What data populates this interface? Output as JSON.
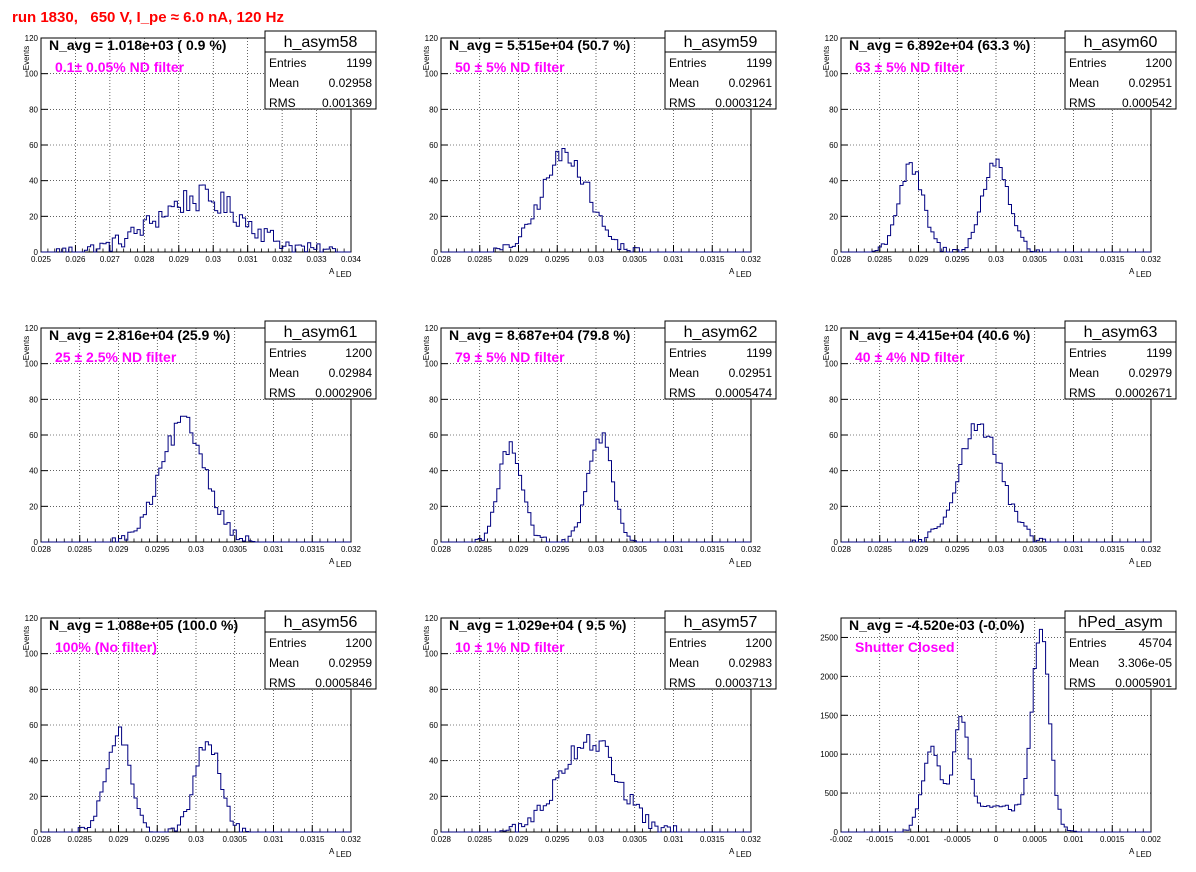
{
  "header": {
    "run_title": "run 1830,   650 V, I_pe ≈ 6.0 nA, 120 Hz"
  },
  "colors": {
    "histogram": "#000080",
    "title": "#ff0000",
    "filter_text": "#ff00ff"
  },
  "chart_data": [
    {
      "type": "histogram",
      "title": "h_asym58",
      "n_avg": "N_avg = 1.018e+03 ( 0.9 %)",
      "filter": "0.1± 0.05% ND filter",
      "stats": {
        "entries_label": "Entries",
        "entries": "1199",
        "mean_label": "Mean",
        "mean": "0.02958",
        "rms_label": "RMS",
        "rms": "0.001369"
      },
      "xlabel": "A",
      "xlabel_sub": "LED",
      "ylabel": "Events",
      "xlim": [
        0.025,
        0.034
      ],
      "ylim": [
        0,
        120
      ],
      "xticks": [
        "0.025",
        "0.026",
        "0.027",
        "0.028",
        "0.029",
        "0.03",
        "0.031",
        "0.032",
        "0.033",
        "0.034"
      ],
      "yticks": [
        "0",
        "20",
        "40",
        "60",
        "80",
        "100",
        "120"
      ],
      "components": [
        {
          "mu": 0.0296,
          "sigma": 0.0013,
          "peak": 30,
          "noise": 7
        }
      ]
    },
    {
      "type": "histogram",
      "title": "h_asym59",
      "n_avg": "N_avg = 5.515e+04 (50.7 %)",
      "filter": "50 ± 5% ND filter",
      "stats": {
        "entries_label": "Entries",
        "entries": "1199",
        "mean_label": "Mean",
        "mean": "0.02961",
        "rms_label": "RMS",
        "rms": "0.0003124"
      },
      "xlabel": "A",
      "xlabel_sub": "LED",
      "ylabel": "Events",
      "xlim": [
        0.028,
        0.032
      ],
      "ylim": [
        0,
        120
      ],
      "xticks": [
        "0.028",
        "0.0285",
        "0.029",
        "0.0295",
        "0.03",
        "0.0305",
        "0.031",
        "0.0315",
        "0.032"
      ],
      "yticks": [
        "0",
        "20",
        "40",
        "60",
        "80",
        "100",
        "120"
      ],
      "components": [
        {
          "mu": 0.02961,
          "sigma": 0.0003,
          "peak": 55,
          "noise": 5
        }
      ]
    },
    {
      "type": "histogram",
      "title": "h_asym60",
      "n_avg": "N_avg = 6.892e+04 (63.3 %)",
      "filter": "63 ± 5% ND filter",
      "stats": {
        "entries_label": "Entries",
        "entries": "1200",
        "mean_label": "Mean",
        "mean": "0.02951",
        "rms_label": "RMS",
        "rms": "0.000542"
      },
      "xlabel": "A",
      "xlabel_sub": "LED",
      "ylabel": "Events",
      "xlim": [
        0.028,
        0.032
      ],
      "ylim": [
        0,
        120
      ],
      "xticks": [
        "0.028",
        "0.0285",
        "0.029",
        "0.0295",
        "0.03",
        "0.0305",
        "0.031",
        "0.0315",
        "0.032"
      ],
      "yticks": [
        "0",
        "20",
        "40",
        "60",
        "80",
        "100",
        "120"
      ],
      "components": [
        {
          "mu": 0.0289,
          "sigma": 0.00016,
          "peak": 47,
          "noise": 4
        },
        {
          "mu": 0.03,
          "sigma": 0.00017,
          "peak": 51,
          "noise": 4
        }
      ]
    },
    {
      "type": "histogram",
      "title": "h_asym61",
      "n_avg": "N_avg = 2.816e+04 (25.9 %)",
      "filter": "25 ± 2.5% ND filter",
      "stats": {
        "entries_label": "Entries",
        "entries": "1200",
        "mean_label": "Mean",
        "mean": "0.02984",
        "rms_label": "RMS",
        "rms": "0.0002906"
      },
      "xlabel": "A",
      "xlabel_sub": "LED",
      "ylabel": "Events",
      "xlim": [
        0.028,
        0.032
      ],
      "ylim": [
        0,
        120
      ],
      "xticks": [
        "0.028",
        "0.0285",
        "0.029",
        "0.0295",
        "0.03",
        "0.0305",
        "0.031",
        "0.0315",
        "0.032"
      ],
      "yticks": [
        "0",
        "20",
        "40",
        "60",
        "80",
        "100",
        "120"
      ],
      "components": [
        {
          "mu": 0.02984,
          "sigma": 0.00029,
          "peak": 66,
          "noise": 5
        }
      ]
    },
    {
      "type": "histogram",
      "title": "h_asym62",
      "n_avg": "N_avg = 8.687e+04 (79.8 %)",
      "filter": "79 ± 5% ND filter",
      "stats": {
        "entries_label": "Entries",
        "entries": "1199",
        "mean_label": "Mean",
        "mean": "0.02951",
        "rms_label": "RMS",
        "rms": "0.0005474"
      },
      "xlabel": "A",
      "xlabel_sub": "LED",
      "ylabel": "Events",
      "xlim": [
        0.028,
        0.032
      ],
      "ylim": [
        0,
        120
      ],
      "xticks": [
        "0.028",
        "0.0285",
        "0.029",
        "0.0295",
        "0.03",
        "0.0305",
        "0.031",
        "0.0315",
        "0.032"
      ],
      "yticks": [
        "0",
        "20",
        "40",
        "60",
        "80",
        "100",
        "120"
      ],
      "components": [
        {
          "mu": 0.0289,
          "sigma": 0.00015,
          "peak": 55,
          "noise": 4
        },
        {
          "mu": 0.03005,
          "sigma": 0.00015,
          "peak": 60,
          "noise": 5
        }
      ]
    },
    {
      "type": "histogram",
      "title": "h_asym63",
      "n_avg": "N_avg = 4.415e+04 (40.6 %)",
      "filter": "40 ± 4% ND filter",
      "stats": {
        "entries_label": "Entries",
        "entries": "1199",
        "mean_label": "Mean",
        "mean": "0.02979",
        "rms_label": "RMS",
        "rms": "0.0002671"
      },
      "xlabel": "A",
      "xlabel_sub": "LED",
      "ylabel": "Events",
      "xlim": [
        0.028,
        0.032
      ],
      "ylim": [
        0,
        120
      ],
      "xticks": [
        "0.028",
        "0.0285",
        "0.029",
        "0.0295",
        "0.03",
        "0.0305",
        "0.031",
        "0.0315",
        "0.032"
      ],
      "yticks": [
        "0",
        "20",
        "40",
        "60",
        "80",
        "100",
        "120"
      ],
      "components": [
        {
          "mu": 0.02979,
          "sigma": 0.00027,
          "peak": 66,
          "noise": 5
        }
      ]
    },
    {
      "type": "histogram",
      "title": "h_asym56",
      "n_avg": "N_avg = 1.088e+05 (100.0 %)",
      "filter": "100% (No filter)",
      "stats": {
        "entries_label": "Entries",
        "entries": "1200",
        "mean_label": "Mean",
        "mean": "0.02959",
        "rms_label": "RMS",
        "rms": "0.0005846"
      },
      "xlabel": "A",
      "xlabel_sub": "LED",
      "ylabel": "Events",
      "xlim": [
        0.028,
        0.032
      ],
      "ylim": [
        0,
        120
      ],
      "xticks": [
        "0.028",
        "0.0285",
        "0.029",
        "0.0295",
        "0.03",
        "0.0305",
        "0.031",
        "0.0315",
        "0.032"
      ],
      "yticks": [
        "0",
        "20",
        "40",
        "60",
        "80",
        "100",
        "120"
      ],
      "components": [
        {
          "mu": 0.029,
          "sigma": 0.00016,
          "peak": 55,
          "noise": 4
        },
        {
          "mu": 0.03015,
          "sigma": 0.00016,
          "peak": 52,
          "noise": 4
        }
      ]
    },
    {
      "type": "histogram",
      "title": "h_asym57",
      "n_avg": "N_avg = 1.029e+04 ( 9.5 %)",
      "filter": "10 ± 1% ND filter",
      "stats": {
        "entries_label": "Entries",
        "entries": "1200",
        "mean_label": "Mean",
        "mean": "0.02983",
        "rms_label": "RMS",
        "rms": "0.0003713"
      },
      "xlabel": "A",
      "xlabel_sub": "LED",
      "ylabel": "Events",
      "xlim": [
        0.028,
        0.032
      ],
      "ylim": [
        0,
        120
      ],
      "xticks": [
        "0.028",
        "0.0285",
        "0.029",
        "0.0295",
        "0.03",
        "0.0305",
        "0.031",
        "0.0315",
        "0.032"
      ],
      "yticks": [
        "0",
        "20",
        "40",
        "60",
        "80",
        "100",
        "120"
      ],
      "components": [
        {
          "mu": 0.0299,
          "sigma": 0.00037,
          "peak": 52,
          "noise": 6
        }
      ]
    },
    {
      "type": "histogram",
      "title": "hPed_asym",
      "n_avg": "N_avg = -4.520e-03 (-0.0%)",
      "filter": "Shutter Closed",
      "stats": {
        "entries_label": "Entries",
        "entries": "45704",
        "mean_label": "Mean",
        "mean": "3.306e-05",
        "rms_label": "RMS",
        "rms": "0.0005901"
      },
      "xlabel": "A",
      "xlabel_sub": "LED",
      "ylabel": "",
      "xlim": [
        -0.002,
        0.002
      ],
      "ylim": [
        0,
        2750
      ],
      "xticks": [
        "-0.002",
        "-0.0015",
        "-0.001",
        "-0.0005",
        "0",
        "0.0005",
        "0.001",
        "0.0015",
        "0.002"
      ],
      "yticks": [
        "0",
        "500",
        "1000",
        "1500",
        "2000",
        "2500"
      ],
      "components": [
        {
          "mu": -0.00083,
          "sigma": 0.00012,
          "peak": 1050,
          "noise": 40
        },
        {
          "mu": -0.00045,
          "sigma": 0.0001,
          "peak": 1300,
          "noise": 40
        },
        {
          "mu": 0.0,
          "sigma": 0.00035,
          "peak": 350,
          "noise": 25
        },
        {
          "mu": 0.00058,
          "sigma": 0.00011,
          "peak": 2500,
          "noise": 60
        }
      ]
    }
  ]
}
